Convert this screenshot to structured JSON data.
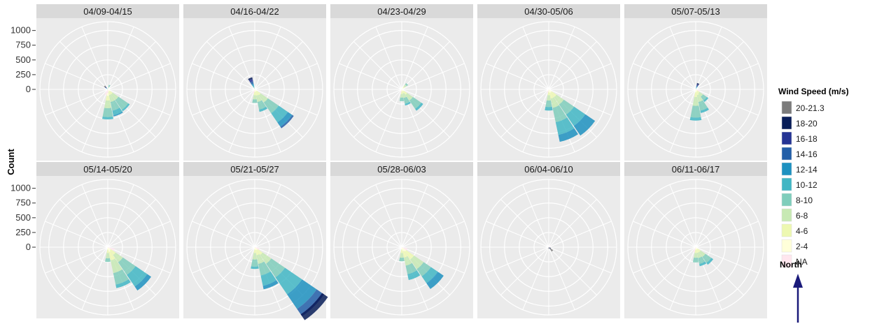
{
  "chart_data": {
    "type": "windrose",
    "ylabel": "Count",
    "r_ticks": [
      0,
      250,
      500,
      750,
      1000
    ],
    "r_max": 1150,
    "direction_bin_deg": 22.5,
    "legend": {
      "title": "Wind Speed (m/s)",
      "bins": [
        "20-21.3",
        "18-20",
        "16-18",
        "14-16",
        "12-14",
        "10-12",
        "8-10",
        "6-8",
        "4-6",
        "2-4",
        "NA"
      ],
      "colors": [
        "#7b7b7b",
        "#081d58",
        "#253494",
        "#225ea8",
        "#1d91c0",
        "#41b6c4",
        "#7fcdbb",
        "#c7e9b4",
        "#edf8b1",
        "#ffffd9",
        "#ffe6ee"
      ]
    },
    "north_label": "North",
    "panels": [
      {
        "label": "04/09-04/15",
        "petals": [
          {
            "dir": 22.5,
            "values": [
              0,
              0,
              0,
              0,
              0,
              0,
              40,
              20,
              10,
              10,
              0
            ]
          },
          {
            "dir": 135,
            "values": [
              0,
              0,
              0,
              0,
              0,
              30,
              200,
              120,
              60,
              40,
              0
            ]
          },
          {
            "dir": 157.5,
            "values": [
              0,
              0,
              0,
              0,
              20,
              80,
              150,
              120,
              60,
              40,
              0
            ]
          },
          {
            "dir": 180,
            "values": [
              0,
              0,
              0,
              0,
              0,
              40,
              150,
              130,
              80,
              50,
              60
            ]
          },
          {
            "dir": 202.5,
            "values": [
              0,
              0,
              0,
              0,
              0,
              0,
              0,
              0,
              0,
              0,
              100
            ]
          },
          {
            "dir": 315,
            "values": [
              20,
              10,
              10,
              10,
              10,
              10,
              10,
              0,
              0,
              0,
              0
            ]
          }
        ]
      },
      {
        "label": "04/16-04/22",
        "petals": [
          {
            "dir": 337.5,
            "values": [
              0,
              30,
              40,
              40,
              30,
              30,
              20,
              10,
              10,
              0,
              0
            ]
          },
          {
            "dir": 135,
            "values": [
              0,
              0,
              0,
              30,
              90,
              190,
              220,
              150,
              80,
              40,
              0
            ]
          },
          {
            "dir": 157.5,
            "values": [
              0,
              0,
              0,
              0,
              0,
              40,
              130,
              110,
              70,
              40,
              0
            ]
          },
          {
            "dir": 180,
            "values": [
              0,
              0,
              0,
              0,
              0,
              0,
              60,
              70,
              60,
              40,
              0
            ]
          },
          {
            "dir": 202.5,
            "values": [
              0,
              0,
              0,
              0,
              0,
              0,
              0,
              0,
              0,
              0,
              70
            ]
          }
        ]
      },
      {
        "label": "04/23-04/29",
        "petals": [
          {
            "dir": 135,
            "values": [
              0,
              0,
              0,
              0,
              0,
              40,
              170,
              120,
              70,
              40,
              0
            ]
          },
          {
            "dir": 157.5,
            "values": [
              0,
              0,
              0,
              0,
              0,
              30,
              100,
              80,
              40,
              30,
              0
            ]
          },
          {
            "dir": 180,
            "values": [
              0,
              0,
              0,
              0,
              0,
              0,
              60,
              60,
              50,
              30,
              0
            ]
          },
          {
            "dir": 202.5,
            "values": [
              0,
              0,
              0,
              0,
              0,
              0,
              0,
              0,
              0,
              0,
              60
            ]
          },
          {
            "dir": 45,
            "values": [
              0,
              0,
              0,
              0,
              0,
              0,
              30,
              40,
              30,
              30,
              0
            ]
          }
        ]
      },
      {
        "label": "04/30-05/06",
        "petals": [
          {
            "dir": 135,
            "values": [
              0,
              0,
              0,
              0,
              200,
              230,
              210,
              150,
              100,
              60,
              0
            ]
          },
          {
            "dir": 157.5,
            "values": [
              0,
              0,
              0,
              0,
              120,
              220,
              250,
              160,
              100,
              60,
              0
            ]
          },
          {
            "dir": 180,
            "values": [
              0,
              0,
              0,
              0,
              0,
              60,
              110,
              90,
              60,
              40,
              0
            ]
          },
          {
            "dir": 202.5,
            "values": [
              0,
              0,
              0,
              0,
              0,
              0,
              0,
              0,
              0,
              0,
              60
            ]
          }
        ]
      },
      {
        "label": "05/07-05/13",
        "petals": [
          {
            "dir": 22.5,
            "values": [
              0,
              20,
              20,
              20,
              20,
              20,
              10,
              0,
              0,
              0,
              0
            ]
          },
          {
            "dir": 157.5,
            "values": [
              0,
              0,
              0,
              0,
              0,
              40,
              150,
              120,
              60,
              40,
              0
            ]
          },
          {
            "dir": 180,
            "values": [
              0,
              0,
              0,
              0,
              0,
              50,
              200,
              150,
              80,
              50,
              0
            ]
          },
          {
            "dir": 135,
            "values": [
              0,
              0,
              0,
              0,
              0,
              30,
              80,
              70,
              50,
              30,
              0
            ]
          },
          {
            "dir": 112.5,
            "values": [
              0,
              0,
              0,
              0,
              0,
              0,
              0,
              0,
              0,
              0,
              70
            ]
          }
        ]
      },
      {
        "label": "05/14-05/20",
        "petals": [
          {
            "dir": 135,
            "values": [
              0,
              0,
              0,
              0,
              80,
              240,
              260,
              150,
              100,
              60,
              0
            ]
          },
          {
            "dir": 157.5,
            "values": [
              0,
              0,
              0,
              0,
              0,
              60,
              200,
              220,
              150,
              80,
              0
            ]
          },
          {
            "dir": 180,
            "values": [
              0,
              0,
              0,
              0,
              0,
              0,
              60,
              90,
              60,
              40,
              0
            ]
          },
          {
            "dir": 112.5,
            "values": [
              0,
              0,
              0,
              0,
              0,
              0,
              0,
              0,
              0,
              0,
              120
            ]
          }
        ]
      },
      {
        "label": "05/21-05/27",
        "petals": [
          {
            "dir": 135,
            "values": [
              0,
              30,
              80,
              150,
              300,
              350,
              280,
              180,
              100,
              60,
              0
            ]
          },
          {
            "dir": 157.5,
            "values": [
              0,
              0,
              0,
              0,
              60,
              180,
              200,
              150,
              90,
              50,
              0
            ]
          },
          {
            "dir": 180,
            "values": [
              0,
              0,
              0,
              0,
              0,
              40,
              120,
              110,
              60,
              40,
              0
            ]
          },
          {
            "dir": 112.5,
            "values": [
              0,
              0,
              0,
              0,
              0,
              0,
              0,
              0,
              0,
              0,
              80
            ]
          }
        ]
      },
      {
        "label": "05/28-06/03",
        "petals": [
          {
            "dir": 135,
            "values": [
              0,
              0,
              0,
              0,
              120,
              140,
              150,
              200,
              160,
              90,
              0
            ]
          },
          {
            "dir": 157.5,
            "values": [
              0,
              0,
              0,
              0,
              0,
              100,
              150,
              140,
              110,
              70,
              0
            ]
          },
          {
            "dir": 180,
            "values": [
              0,
              0,
              0,
              0,
              0,
              0,
              60,
              80,
              60,
              40,
              0
            ]
          },
          {
            "dir": 112.5,
            "values": [
              0,
              0,
              0,
              0,
              0,
              0,
              0,
              0,
              0,
              0,
              100
            ]
          }
        ]
      },
      {
        "label": "06/04-06/10",
        "petals": [
          {
            "dir": 112.5,
            "values": [
              40,
              0,
              0,
              0,
              0,
              0,
              0,
              0,
              0,
              0,
              0
            ]
          },
          {
            "dir": 135,
            "values": [
              50,
              20,
              20,
              0,
              0,
              0,
              0,
              0,
              0,
              0,
              0
            ]
          },
          {
            "dir": 157.5,
            "values": [
              30,
              0,
              0,
              0,
              0,
              0,
              0,
              0,
              0,
              0,
              0
            ]
          },
          {
            "dir": 202.5,
            "values": [
              30,
              0,
              0,
              0,
              0,
              0,
              0,
              0,
              0,
              0,
              0
            ]
          },
          {
            "dir": 45,
            "values": [
              0,
              0,
              0,
              0,
              0,
              0,
              0,
              0,
              0,
              0,
              40
            ]
          }
        ]
      },
      {
        "label": "06/11-06/17",
        "petals": [
          {
            "dir": 135,
            "values": [
              0,
              0,
              0,
              0,
              0,
              40,
              120,
              100,
              60,
              40,
              0
            ]
          },
          {
            "dir": 157.5,
            "values": [
              0,
              0,
              0,
              0,
              0,
              40,
              100,
              90,
              60,
              40,
              0
            ]
          },
          {
            "dir": 180,
            "values": [
              0,
              0,
              0,
              0,
              0,
              0,
              80,
              80,
              60,
              40,
              0
            ]
          },
          {
            "dir": 202.5,
            "values": [
              0,
              0,
              0,
              0,
              0,
              0,
              0,
              0,
              0,
              0,
              90
            ]
          }
        ]
      }
    ]
  }
}
